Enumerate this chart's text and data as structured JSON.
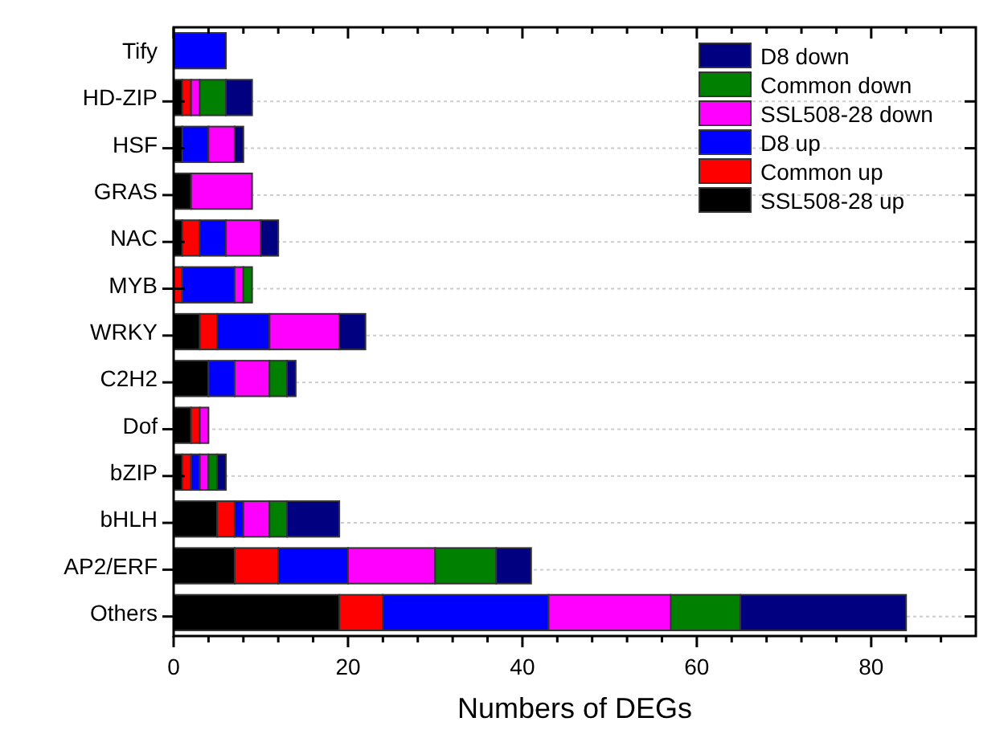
{
  "chart_data": {
    "type": "bar",
    "orientation": "horizontal",
    "stacked": true,
    "xlabel": "Numbers of DEGs",
    "categories": [
      "Tify",
      "HD-ZIP",
      "HSF",
      "GRAS",
      "NAC",
      "MYB",
      "WRKY",
      "C2H2",
      "Dof",
      "bZIP",
      "bHLH",
      "AP2/ERF",
      "Others"
    ],
    "series": [
      {
        "name": "SSL508-28 up",
        "color": "#000000",
        "values": [
          0,
          1,
          1,
          2,
          1,
          0,
          3,
          4,
          2,
          1,
          5,
          7,
          19
        ]
      },
      {
        "name": "Common up",
        "color": "#ff0000",
        "values": [
          0,
          1,
          0,
          0,
          2,
          1,
          2,
          0,
          1,
          1,
          2,
          5,
          5
        ]
      },
      {
        "name": "D8 up",
        "color": "#0000ff",
        "values": [
          6,
          0,
          3,
          0,
          3,
          6,
          6,
          3,
          0,
          1,
          1,
          8,
          19
        ]
      },
      {
        "name": "SSL508-28 down",
        "color": "#ff00ff",
        "values": [
          0,
          1,
          3,
          7,
          4,
          1,
          8,
          4,
          1,
          1,
          3,
          10,
          14
        ]
      },
      {
        "name": "Common down",
        "color": "#008000",
        "values": [
          0,
          3,
          0,
          0,
          0,
          1,
          0,
          2,
          0,
          1,
          2,
          7,
          8
        ]
      },
      {
        "name": "D8 down",
        "color": "#000080",
        "values": [
          0,
          3,
          1,
          0,
          2,
          0,
          3,
          1,
          0,
          1,
          6,
          4,
          19
        ]
      }
    ],
    "xlim": [
      0,
      92
    ],
    "xticks": [
      0,
      {
        "value": 4,
        "label": null
      },
      {
        "value": 8,
        "label": null
      },
      {
        "value": 12,
        "label": null
      },
      {
        "value": 16,
        "label": null
      },
      20,
      {
        "value": 24,
        "label": null
      },
      {
        "value": 28,
        "label": null
      },
      {
        "value": 32,
        "label": null
      },
      {
        "value": 36,
        "label": null
      },
      40,
      {
        "value": 44,
        "label": null
      },
      {
        "value": 48,
        "label": null
      },
      {
        "value": 52,
        "label": null
      },
      {
        "value": 56,
        "label": null
      },
      60,
      {
        "value": 64,
        "label": null
      },
      {
        "value": 68,
        "label": null
      },
      {
        "value": 72,
        "label": null
      },
      {
        "value": 76,
        "label": null
      },
      80,
      {
        "value": 84,
        "label": null
      },
      {
        "value": 88,
        "label": null
      }
    ],
    "grid": "y",
    "legend": "top right"
  }
}
